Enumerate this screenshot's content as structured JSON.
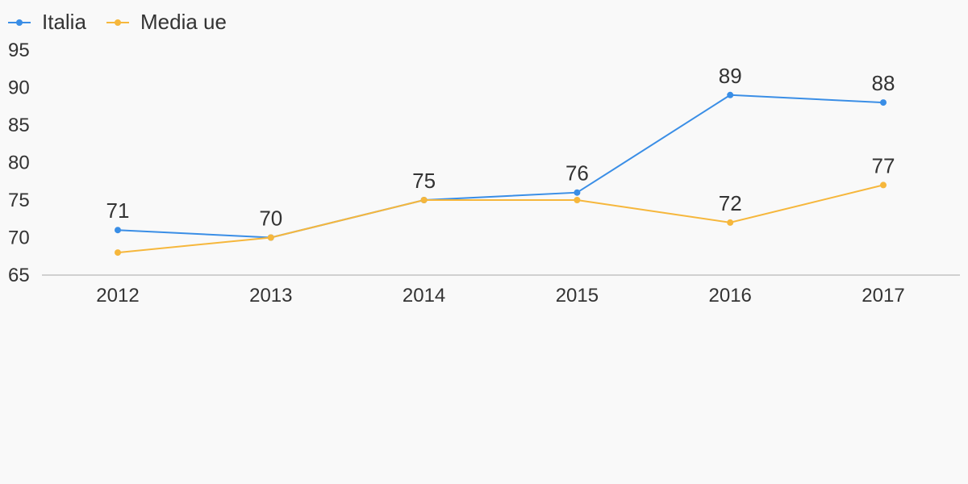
{
  "chart_data": {
    "type": "line",
    "x": [
      "2012",
      "2013",
      "2014",
      "2015",
      "2016",
      "2017"
    ],
    "series": [
      {
        "name": "Italia",
        "color": "#3a8ee6",
        "values": [
          71,
          70,
          75,
          76,
          89,
          88
        ]
      },
      {
        "name": "Media ue",
        "color": "#f6b73c",
        "values": [
          68,
          70,
          75,
          75,
          72,
          77
        ]
      }
    ],
    "data_labels": [
      {
        "series": 0,
        "index": 0,
        "text": "71"
      },
      {
        "series": 0,
        "index": 1,
        "text": "70"
      },
      {
        "series": 0,
        "index": 2,
        "text": "75"
      },
      {
        "series": 0,
        "index": 3,
        "text": "76"
      },
      {
        "series": 0,
        "index": 4,
        "text": "89"
      },
      {
        "series": 0,
        "index": 5,
        "text": "88"
      },
      {
        "series": 1,
        "index": 4,
        "text": "72"
      },
      {
        "series": 1,
        "index": 5,
        "text": "77"
      }
    ],
    "yticks": [
      65,
      70,
      75,
      80,
      85,
      90,
      95
    ],
    "ylim": [
      65,
      95
    ],
    "legend_position": "top-left",
    "grid": false,
    "axis_color": "#d0d0d0"
  }
}
